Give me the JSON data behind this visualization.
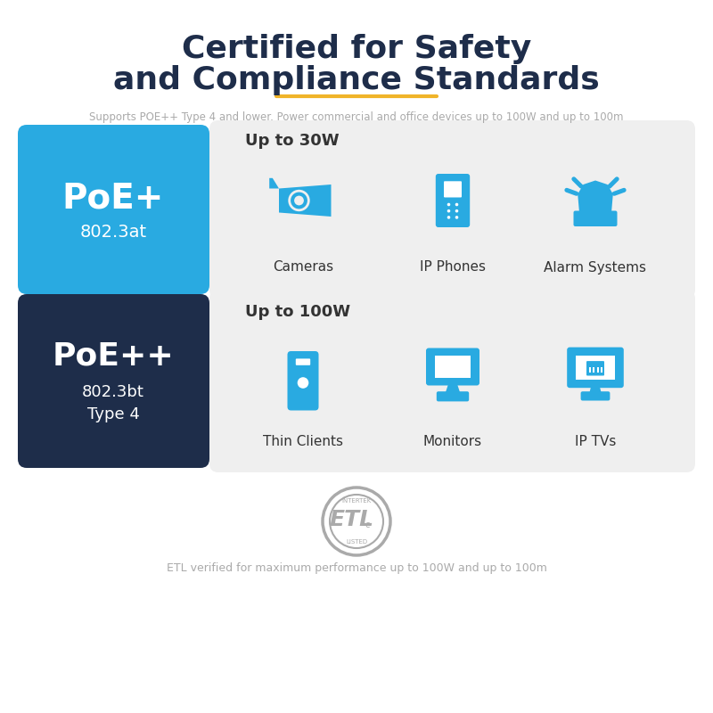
{
  "title_line1": "Certified for Safety",
  "title_line2": "and Compliance Standards",
  "title_color": "#1e2d4a",
  "underline_color": "#f0b429",
  "subtitle": "Supports POE++ Type 4 and lower. Power commercial and office devices up to 100W and up to 100m",
  "subtitle_color": "#aaaaaa",
  "bg_color": "#ffffff",
  "poe_plus_bg": "#29aae1",
  "poe_plus_text": "PoE+",
  "poe_plus_sub": "802.3at",
  "poe_plus_text_color": "#ffffff",
  "poe_plusplus_bg": "#1e2d4a",
  "poe_plusplus_text": "PoE++",
  "poe_plusplus_sub1": "802.3bt",
  "poe_plusplus_sub2": "Type 4",
  "poe_plusplus_text_color": "#ffffff",
  "row1_power": "Up to 30W",
  "row1_devices": [
    "Cameras",
    "IP Phones",
    "Alarm Systems"
  ],
  "row2_power": "Up to 100W",
  "row2_devices": [
    "Thin Clients",
    "Monitors",
    "IP TVs"
  ],
  "device_text_color": "#333333",
  "icon_color": "#29aae1",
  "panel_bg": "#efefef",
  "etl_text": "ETL verified for maximum performance up to 100W and up to 100m",
  "etl_color": "#aaaaaa",
  "power_text_color": "#333333"
}
